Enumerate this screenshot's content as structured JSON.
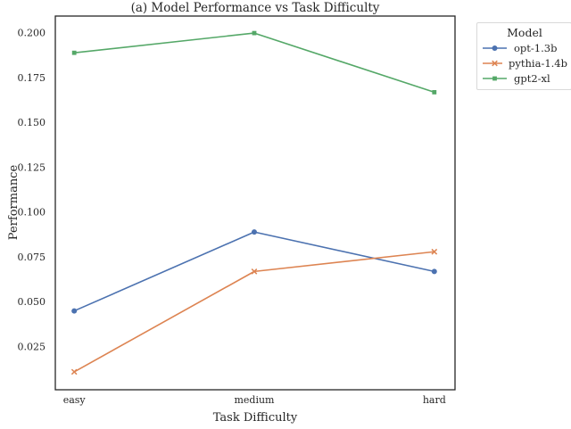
{
  "chart_data": {
    "type": "line",
    "title": "(a) Model Performance vs Task Difficulty",
    "xlabel": "Task Difficulty",
    "ylabel": "Performance",
    "categories": [
      "easy",
      "medium",
      "hard"
    ],
    "series": [
      {
        "name": "opt-1.3b",
        "values": [
          0.045,
          0.089,
          0.067
        ],
        "color": "#4c72b0",
        "marker": "circle"
      },
      {
        "name": "pythia-1.4b",
        "values": [
          0.011,
          0.067,
          0.078
        ],
        "color": "#dd8452",
        "marker": "x"
      },
      {
        "name": "gpt2-xl",
        "values": [
          0.189,
          0.2,
          0.167
        ],
        "color": "#55a868",
        "marker": "square"
      }
    ],
    "yticks": [
      0.025,
      0.05,
      0.075,
      0.1,
      0.125,
      0.15,
      0.175,
      0.2
    ],
    "ytick_labels": [
      "0.025",
      "0.050",
      "0.075",
      "0.100",
      "0.125",
      "0.150",
      "0.175",
      "0.200"
    ],
    "ylim": [
      0.001,
      0.2095
    ],
    "xlim": [
      -0.105,
      2.115
    ],
    "grid": false,
    "legend": {
      "title": "Model",
      "position": "outside-upper-right"
    }
  },
  "colors": {
    "background": "#ffffff",
    "axes_edge": "#262626",
    "text": "#262626",
    "legend_border": "#d9d9d9"
  }
}
